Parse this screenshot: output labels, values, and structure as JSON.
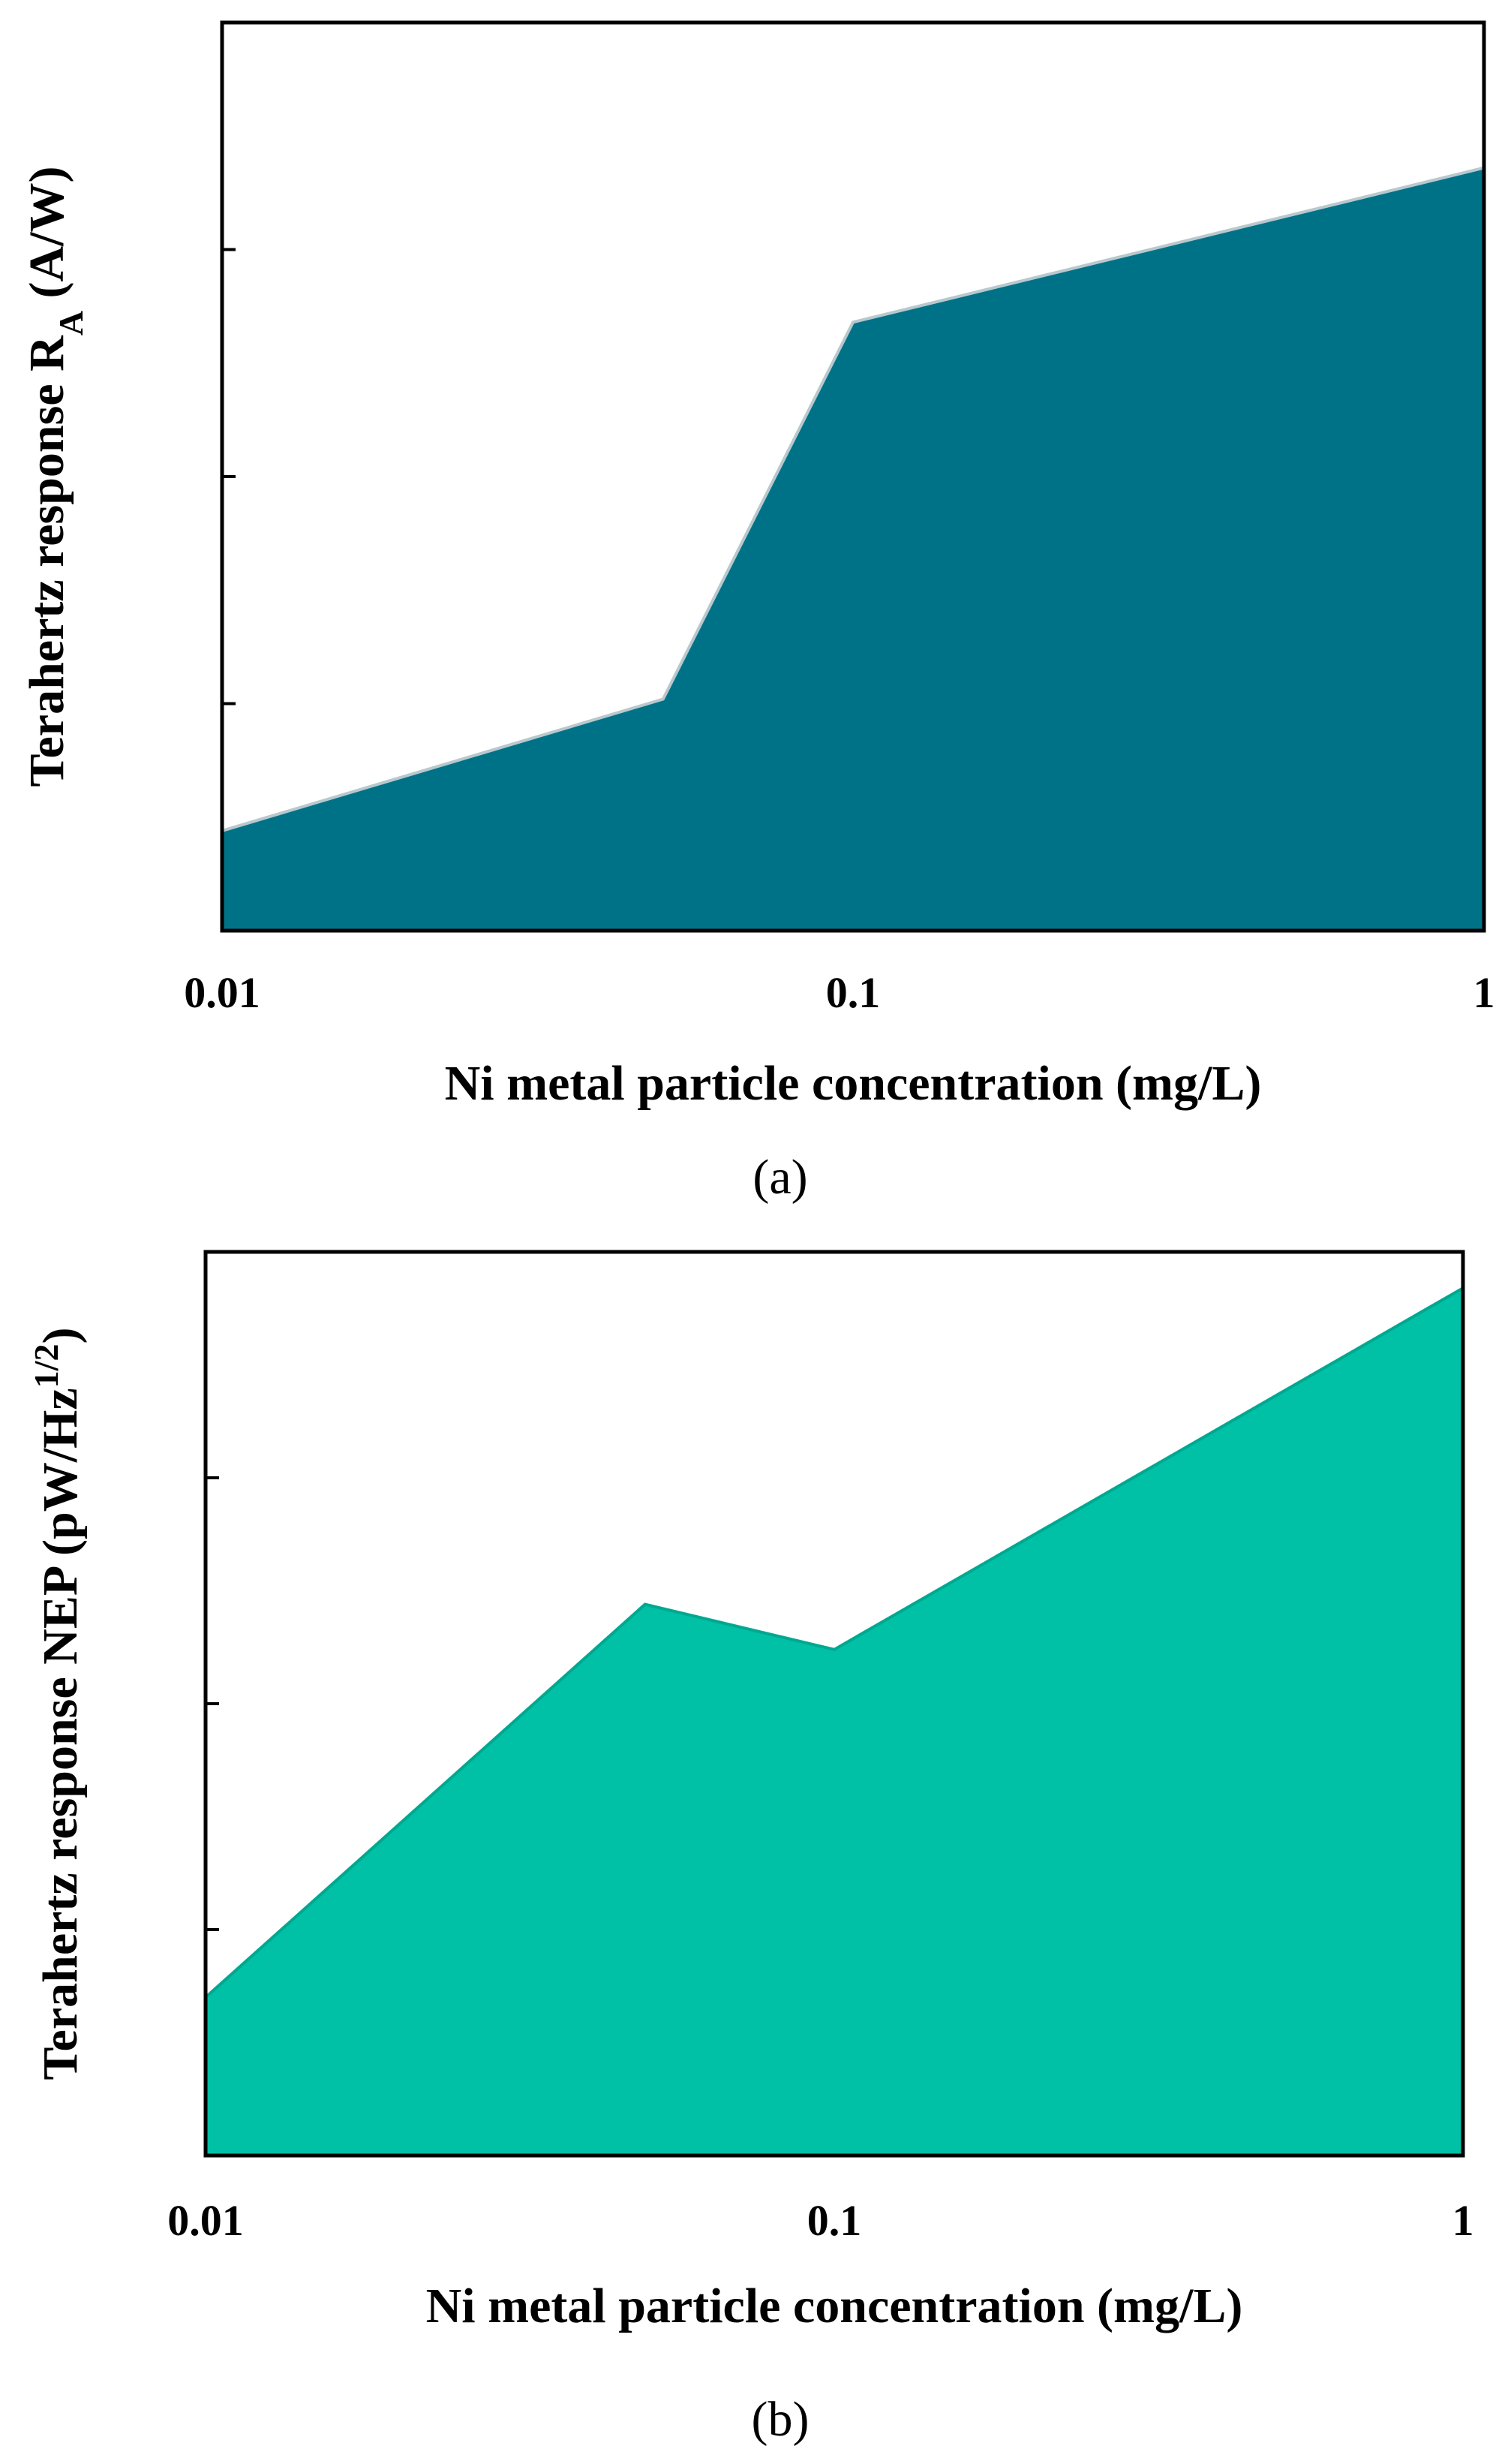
{
  "chart_data": [
    {
      "type": "area",
      "panel_label": "(a)",
      "xscale": "log",
      "xlim": [
        0.01,
        1
      ],
      "xticks": [
        0.01,
        0.1,
        1
      ],
      "xtick_labels": [
        "0.01",
        "0.1",
        "1"
      ],
      "xlabel": "Ni metal particle concentration (mg/L)",
      "ylabel_main": "Terahertz response R",
      "ylabel_sub": "A",
      "ylabel_suffix": " (A/W)",
      "ylim": [
        0,
        1
      ],
      "yticks": [
        0.25,
        0.5,
        0.75
      ],
      "x": [
        0.01,
        0.05,
        0.1,
        1
      ],
      "values": [
        0.11,
        0.255,
        0.67,
        0.84
      ],
      "fill": "#007287",
      "stroke": "#b8c8cc"
    },
    {
      "type": "area",
      "panel_label": "(b)",
      "xscale": "log",
      "xlim": [
        0.01,
        1
      ],
      "xticks": [
        0.01,
        0.1,
        1
      ],
      "xtick_labels": [
        "0.01",
        "0.1",
        "1"
      ],
      "xlabel": "Ni metal particle concentration (mg/L)",
      "ylabel_main": "Terahertz response NEP (pW/Hz",
      "ylabel_sup": "1/2",
      "ylabel_suffix": ")",
      "ylim": [
        0,
        1
      ],
      "yticks": [
        0.25,
        0.5,
        0.75
      ],
      "x": [
        0.01,
        0.05,
        0.1,
        1
      ],
      "values": [
        0.175,
        0.61,
        0.56,
        0.96
      ],
      "fill": "#00c0a6",
      "stroke": "#00a890"
    }
  ]
}
